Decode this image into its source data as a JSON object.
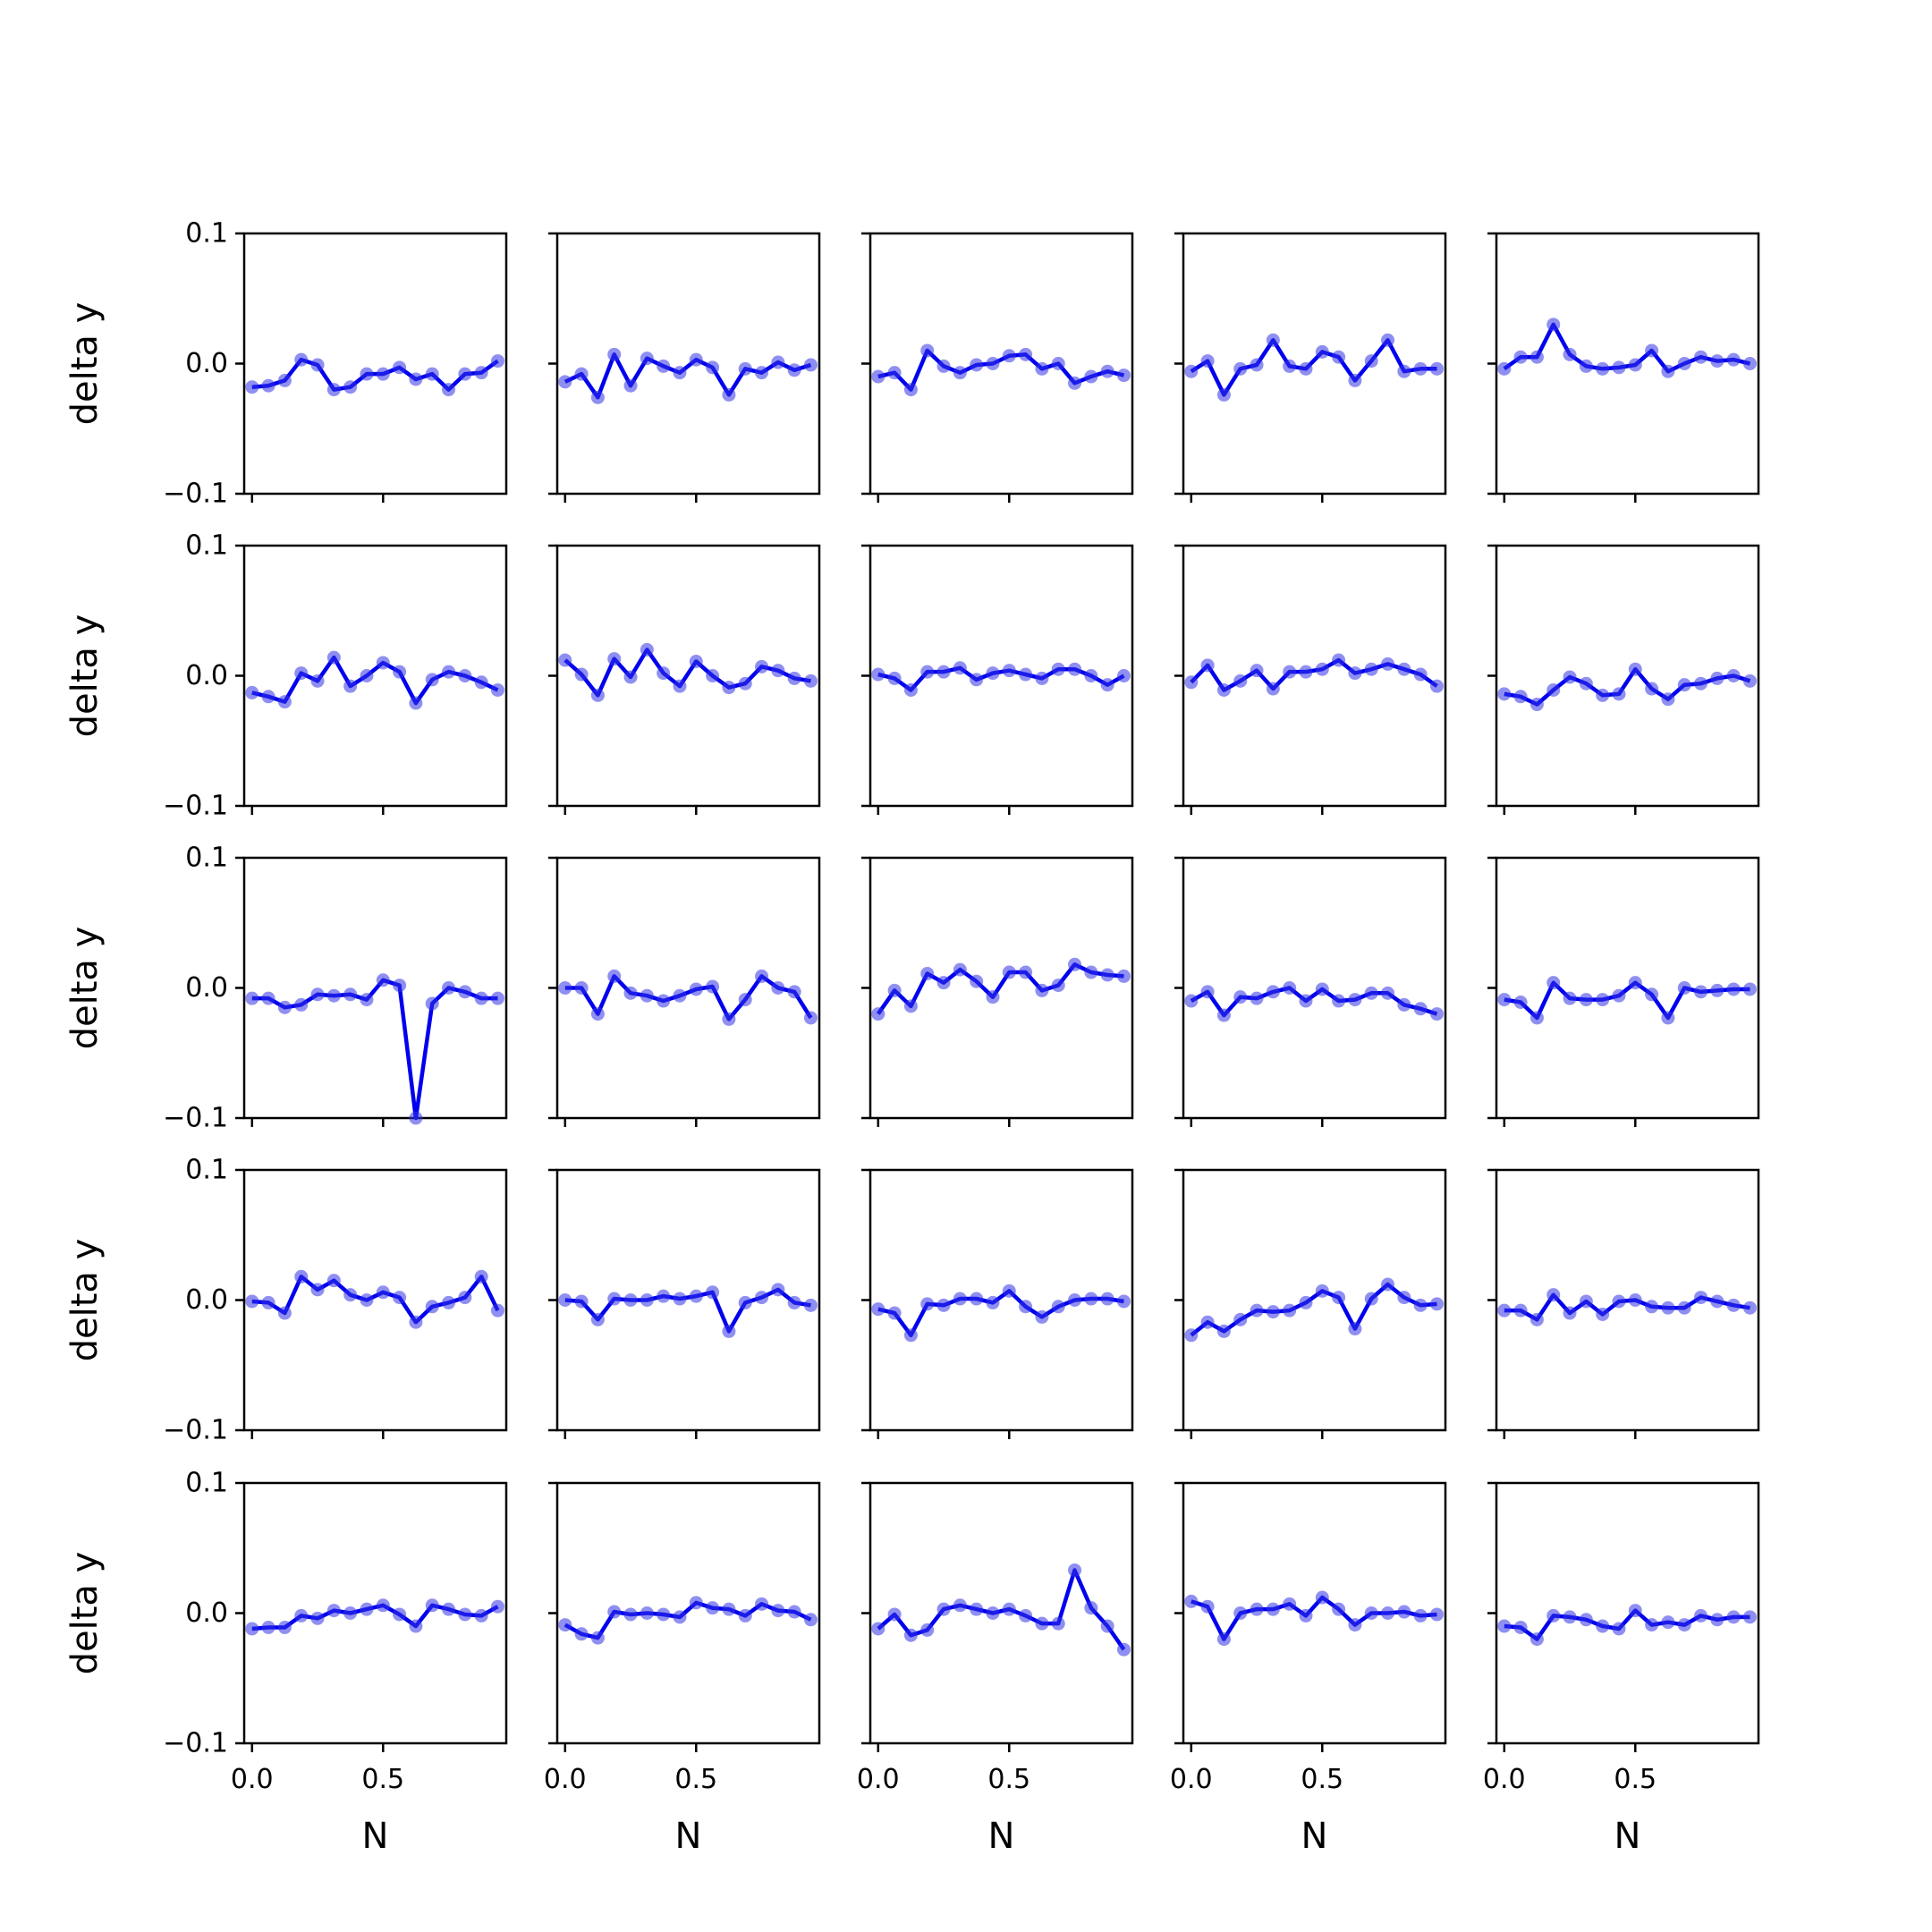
{
  "chart_data": {
    "type": "line",
    "layout": "5x5 small multiples",
    "shared_axes": {
      "x": true,
      "y": true
    },
    "xlabel": "N",
    "ylabel": "delta y",
    "xlim": [
      -0.03,
      0.97
    ],
    "ylim": [
      -0.1,
      0.1
    ],
    "xticks": [
      0.0,
      0.5
    ],
    "xtick_labels": [
      "0.0",
      "0.5"
    ],
    "yticks": [
      0.1,
      0.0,
      -0.1
    ],
    "ytick_labels": [
      "0.1",
      "0.0",
      "−0.1"
    ],
    "x": [
      0.0,
      0.0625,
      0.125,
      0.1875,
      0.25,
      0.3125,
      0.375,
      0.4375,
      0.5,
      0.5625,
      0.625,
      0.6875,
      0.75,
      0.8125,
      0.875,
      0.9375
    ],
    "line_color": "#0000ee",
    "marker_color": "#3333e6",
    "panels": [
      [
        -0.018,
        -0.017,
        -0.013,
        0.003,
        -0.001,
        -0.02,
        -0.018,
        -0.008,
        -0.008,
        -0.003,
        -0.012,
        -0.008,
        -0.02,
        -0.008,
        -0.007,
        0.002
      ],
      [
        -0.014,
        -0.008,
        -0.026,
        0.007,
        -0.017,
        0.004,
        -0.002,
        -0.007,
        0.003,
        -0.003,
        -0.024,
        -0.004,
        -0.007,
        0.001,
        -0.005,
        -0.001
      ],
      [
        -0.01,
        -0.007,
        -0.02,
        0.01,
        -0.002,
        -0.007,
        -0.001,
        0.0,
        0.006,
        0.007,
        -0.004,
        0.0,
        -0.015,
        -0.01,
        -0.006,
        -0.009
      ],
      [
        -0.006,
        0.002,
        -0.024,
        -0.004,
        -0.001,
        0.018,
        -0.002,
        -0.004,
        0.009,
        0.005,
        -0.013,
        0.002,
        0.018,
        -0.006,
        -0.004,
        -0.004
      ],
      [
        -0.004,
        0.005,
        0.005,
        0.03,
        0.007,
        -0.002,
        -0.004,
        -0.003,
        -0.001,
        0.01,
        -0.006,
        0.0,
        0.005,
        0.002,
        0.003,
        0.0
      ],
      [
        -0.013,
        -0.016,
        -0.02,
        0.002,
        -0.004,
        0.014,
        -0.008,
        0.0,
        0.01,
        0.003,
        -0.021,
        -0.003,
        0.003,
        0.0,
        -0.005,
        -0.011
      ],
      [
        0.012,
        0.001,
        -0.015,
        0.013,
        -0.001,
        0.02,
        0.002,
        -0.008,
        0.011,
        0.0,
        -0.009,
        -0.006,
        0.007,
        0.004,
        -0.002,
        -0.004
      ],
      [
        0.001,
        -0.002,
        -0.011,
        0.003,
        0.003,
        0.006,
        -0.003,
        0.002,
        0.004,
        0.001,
        -0.002,
        0.005,
        0.005,
        0.0,
        -0.007,
        0.0
      ],
      [
        -0.005,
        0.008,
        -0.011,
        -0.004,
        0.004,
        -0.01,
        0.003,
        0.003,
        0.005,
        0.012,
        0.002,
        0.005,
        0.009,
        0.005,
        0.001,
        -0.008
      ],
      [
        -0.014,
        -0.016,
        -0.022,
        -0.011,
        -0.001,
        -0.006,
        -0.015,
        -0.014,
        0.005,
        -0.01,
        -0.018,
        -0.007,
        -0.006,
        -0.002,
        0.0,
        -0.004
      ],
      [
        -0.008,
        -0.008,
        -0.015,
        -0.013,
        -0.005,
        -0.006,
        -0.005,
        -0.009,
        0.006,
        0.002,
        -0.1,
        -0.012,
        0.0,
        -0.003,
        -0.008,
        -0.008
      ],
      [
        0.0,
        0.0,
        -0.02,
        0.009,
        -0.004,
        -0.006,
        -0.01,
        -0.006,
        -0.001,
        0.001,
        -0.024,
        -0.009,
        0.009,
        0.0,
        -0.003,
        -0.023
      ],
      [
        -0.02,
        -0.002,
        -0.014,
        0.011,
        0.004,
        0.014,
        0.005,
        -0.007,
        0.012,
        0.012,
        -0.002,
        0.002,
        0.018,
        0.012,
        0.01,
        0.009
      ],
      [
        -0.01,
        -0.003,
        -0.021,
        -0.007,
        -0.008,
        -0.003,
        0.0,
        -0.01,
        -0.001,
        -0.01,
        -0.009,
        -0.004,
        -0.004,
        -0.013,
        -0.016,
        -0.02
      ],
      [
        -0.009,
        -0.011,
        -0.023,
        0.004,
        -0.008,
        -0.009,
        -0.009,
        -0.006,
        0.004,
        -0.005,
        -0.023,
        0.0,
        -0.003,
        -0.002,
        -0.001,
        -0.001
      ],
      [
        -0.001,
        -0.002,
        -0.01,
        0.018,
        0.008,
        0.015,
        0.004,
        0.0,
        0.006,
        0.002,
        -0.017,
        -0.005,
        -0.002,
        0.002,
        0.018,
        -0.008
      ],
      [
        0.0,
        -0.001,
        -0.015,
        0.001,
        0.0,
        0.0,
        0.003,
        0.001,
        0.003,
        0.006,
        -0.024,
        -0.002,
        0.002,
        0.008,
        -0.002,
        -0.004
      ],
      [
        -0.007,
        -0.01,
        -0.027,
        -0.003,
        -0.004,
        0.001,
        0.001,
        -0.002,
        0.007,
        -0.005,
        -0.013,
        -0.005,
        0.0,
        0.001,
        0.001,
        -0.001
      ],
      [
        -0.027,
        -0.017,
        -0.024,
        -0.015,
        -0.008,
        -0.009,
        -0.008,
        -0.002,
        0.007,
        0.002,
        -0.022,
        0.001,
        0.012,
        0.002,
        -0.004,
        -0.003
      ],
      [
        -0.008,
        -0.008,
        -0.015,
        0.004,
        -0.01,
        -0.001,
        -0.011,
        -0.001,
        0.0,
        -0.005,
        -0.006,
        -0.006,
        0.002,
        -0.001,
        -0.004,
        -0.006
      ],
      [
        -0.012,
        -0.011,
        -0.011,
        -0.002,
        -0.004,
        0.002,
        0.0,
        0.003,
        0.006,
        -0.001,
        -0.01,
        0.006,
        0.003,
        -0.001,
        -0.002,
        0.005
      ],
      [
        -0.009,
        -0.016,
        -0.019,
        0.001,
        -0.001,
        0.0,
        -0.001,
        -0.003,
        0.008,
        0.004,
        0.003,
        -0.002,
        0.007,
        0.002,
        0.001,
        -0.005
      ],
      [
        -0.012,
        -0.001,
        -0.017,
        -0.013,
        0.003,
        0.006,
        0.003,
        0.0,
        0.003,
        -0.002,
        -0.008,
        -0.008,
        0.033,
        0.004,
        -0.01,
        -0.028
      ],
      [
        0.009,
        0.005,
        -0.02,
        0.0,
        0.003,
        0.003,
        0.007,
        -0.002,
        0.012,
        0.003,
        -0.009,
        0.0,
        0.0,
        0.001,
        -0.002,
        -0.001
      ],
      [
        -0.01,
        -0.011,
        -0.02,
        -0.002,
        -0.003,
        -0.005,
        -0.01,
        -0.012,
        0.002,
        -0.009,
        -0.007,
        -0.009,
        -0.002,
        -0.005,
        -0.003,
        -0.003
      ]
    ]
  }
}
